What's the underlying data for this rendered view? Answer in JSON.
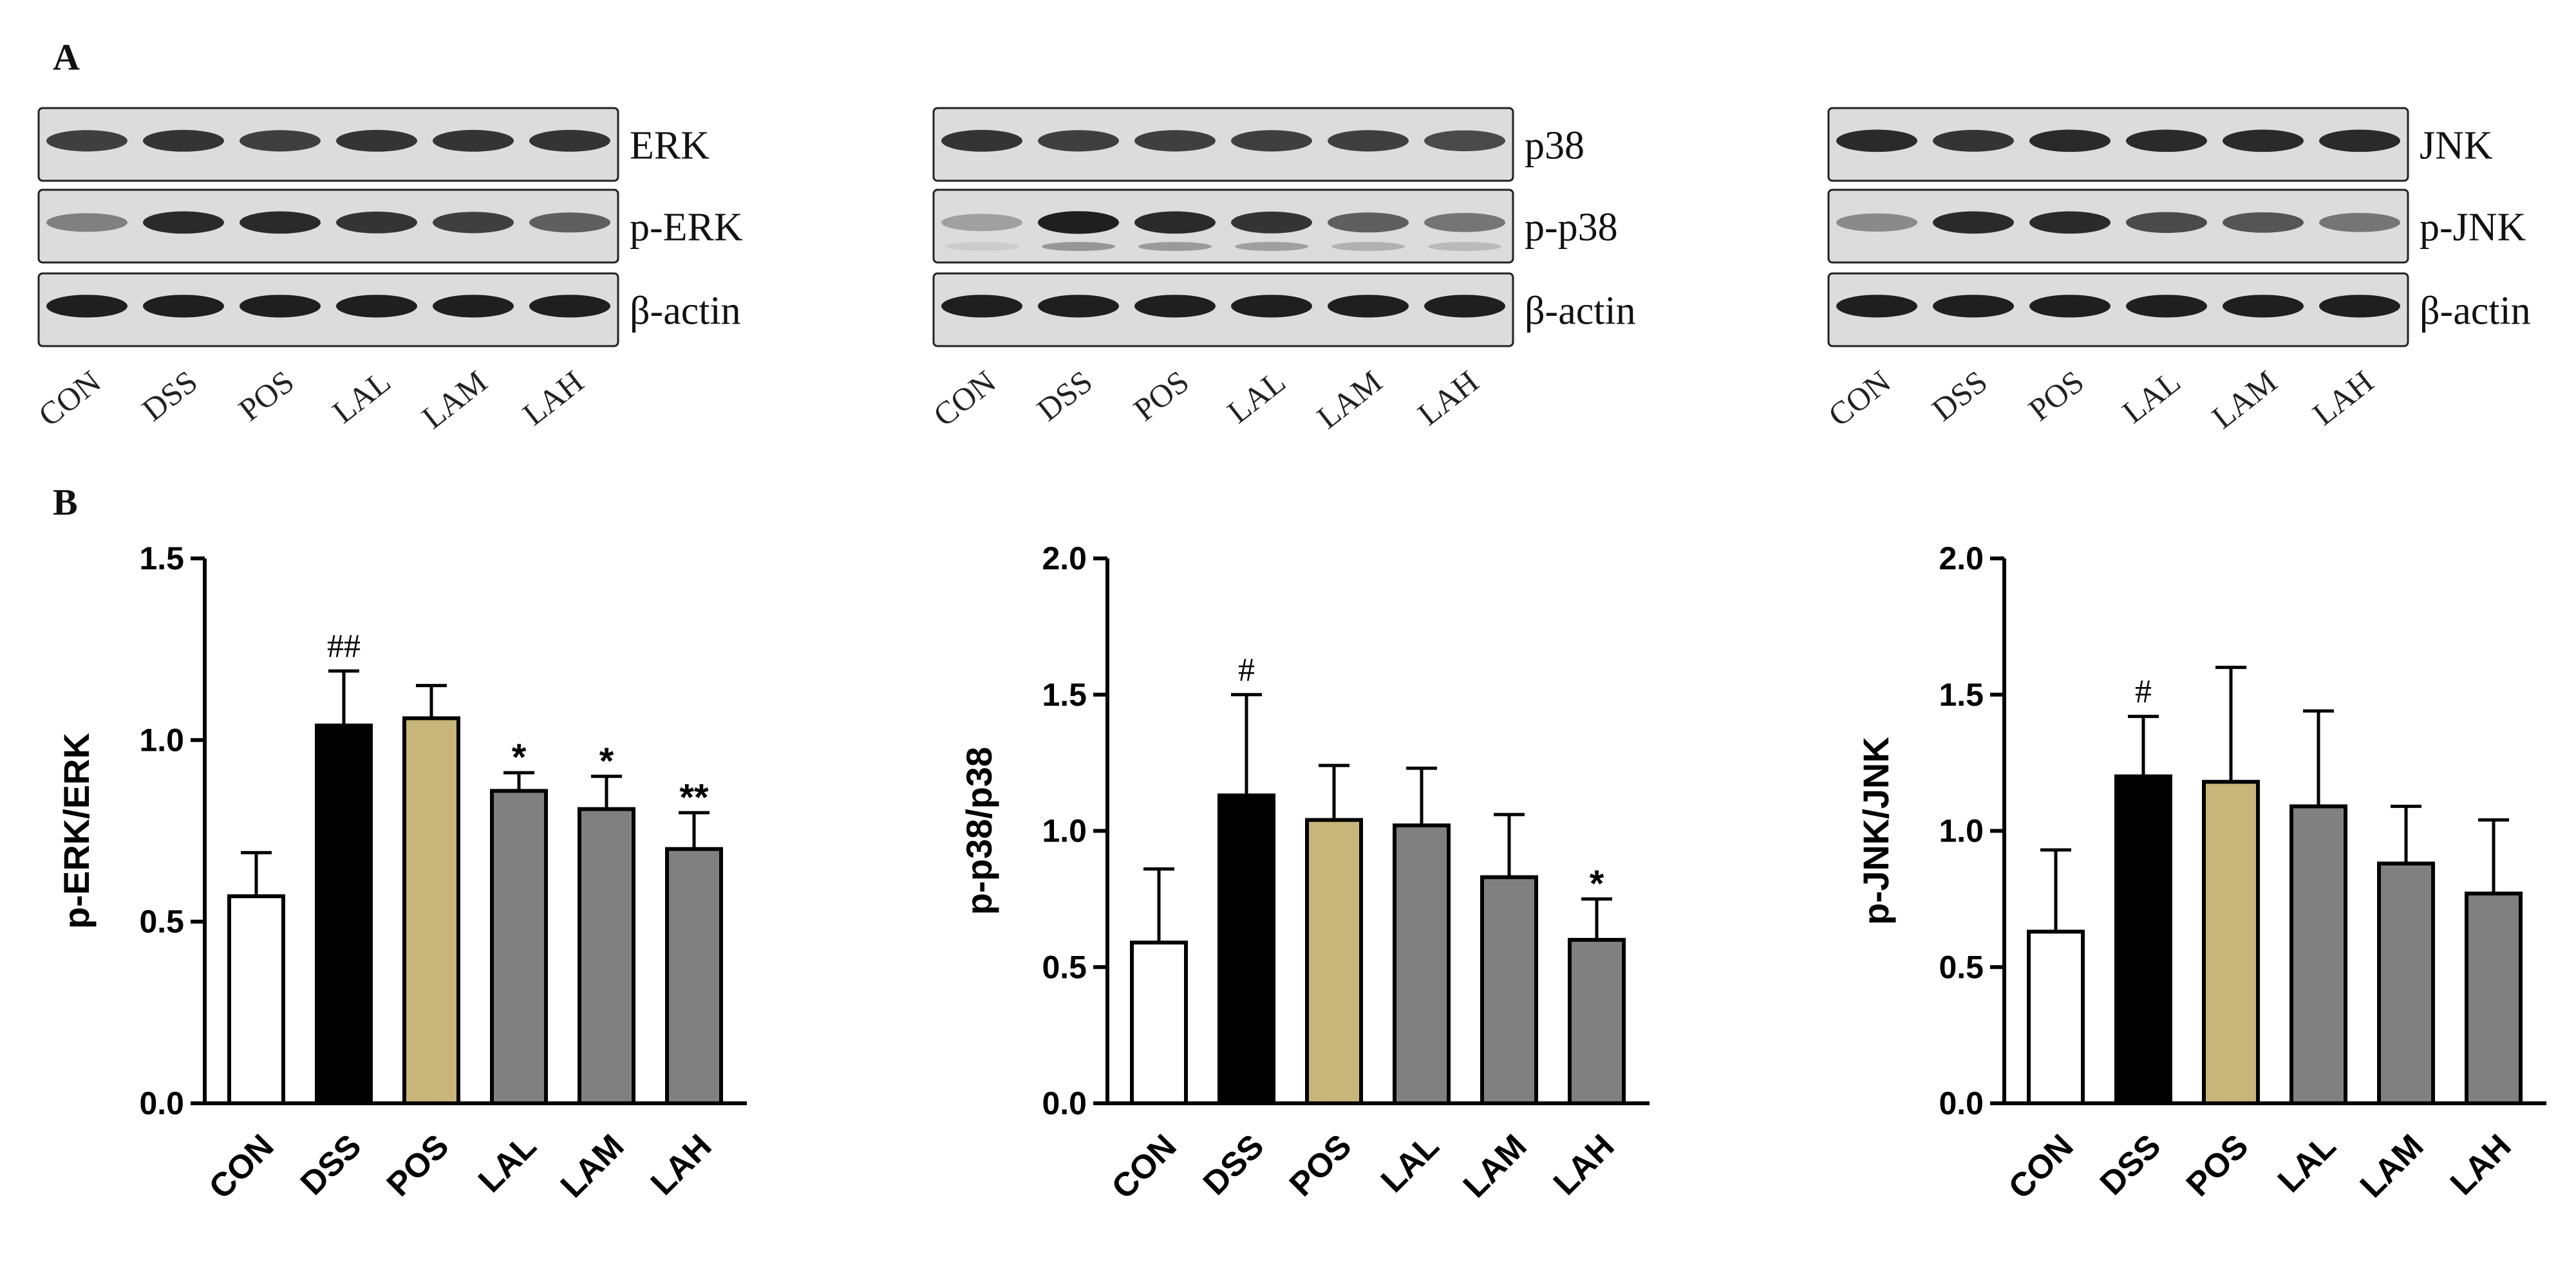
{
  "panel_labels": {
    "a": "A",
    "b": "B"
  },
  "lanes": [
    "CON",
    "DSS",
    "POS",
    "LAL",
    "LAM",
    "LAH"
  ],
  "blots": [
    {
      "rows": [
        {
          "label": "ERK",
          "intensity": [
            0.8,
            0.85,
            0.8,
            0.85,
            0.85,
            0.85
          ],
          "lower_band": false
        },
        {
          "label": "p-ERK",
          "intensity": [
            0.5,
            0.9,
            0.9,
            0.85,
            0.8,
            0.65
          ],
          "lower_band": false
        },
        {
          "label": "β-actin",
          "intensity": [
            0.95,
            0.95,
            0.95,
            0.95,
            0.95,
            0.95
          ],
          "lower_band": false
        }
      ]
    },
    {
      "rows": [
        {
          "label": "p38",
          "intensity": [
            0.85,
            0.8,
            0.8,
            0.8,
            0.8,
            0.75
          ],
          "lower_band": false
        },
        {
          "label": "p-p38",
          "intensity": [
            0.35,
            0.95,
            0.9,
            0.85,
            0.65,
            0.55
          ],
          "lower_band": true
        },
        {
          "label": "β-actin",
          "intensity": [
            0.95,
            0.95,
            0.95,
            0.95,
            0.95,
            0.95
          ],
          "lower_band": false
        }
      ]
    },
    {
      "rows": [
        {
          "label": "JNK",
          "intensity": [
            0.9,
            0.85,
            0.9,
            0.9,
            0.9,
            0.9
          ],
          "lower_band": false
        },
        {
          "label": "p-JNK",
          "intensity": [
            0.45,
            0.9,
            0.9,
            0.75,
            0.7,
            0.55
          ],
          "lower_band": false
        },
        {
          "label": "β-actin",
          "intensity": [
            0.95,
            0.95,
            0.95,
            0.95,
            0.95,
            0.95
          ],
          "lower_band": false
        }
      ]
    }
  ],
  "chart_data": [
    {
      "type": "bar",
      "categories": [
        "CON",
        "DSS",
        "POS",
        "LAL",
        "LAM",
        "LAH"
      ],
      "values": [
        0.57,
        1.04,
        1.06,
        0.86,
        0.81,
        0.7
      ],
      "errors": [
        0.12,
        0.15,
        0.09,
        0.05,
        0.09,
        0.1
      ],
      "significance": [
        "",
        "##",
        "",
        "*",
        "*",
        "**"
      ],
      "ylabel": "p-ERK/ERK",
      "ylim": [
        0,
        1.5
      ],
      "yticks": [
        "0.0",
        "0.5",
        "1.0",
        "1.5"
      ],
      "colors": [
        "#ffffff",
        "#000000",
        "#c8b57a",
        "#808080",
        "#808080",
        "#808080"
      ]
    },
    {
      "type": "bar",
      "categories": [
        "CON",
        "DSS",
        "POS",
        "LAL",
        "LAM",
        "LAH"
      ],
      "values": [
        0.59,
        1.13,
        1.04,
        1.02,
        0.83,
        0.6
      ],
      "errors": [
        0.27,
        0.37,
        0.2,
        0.21,
        0.23,
        0.15
      ],
      "significance": [
        "",
        "#",
        "",
        "",
        "",
        "*"
      ],
      "ylabel": "p-p38/p38",
      "ylim": [
        0,
        2.0
      ],
      "yticks": [
        "0.0",
        "0.5",
        "1.0",
        "1.5",
        "2.0"
      ],
      "colors": [
        "#ffffff",
        "#000000",
        "#c8b57a",
        "#808080",
        "#808080",
        "#808080"
      ]
    },
    {
      "type": "bar",
      "categories": [
        "CON",
        "DSS",
        "POS",
        "LAL",
        "LAM",
        "LAH"
      ],
      "values": [
        0.63,
        1.2,
        1.18,
        1.09,
        0.88,
        0.77
      ],
      "errors": [
        0.3,
        0.22,
        0.42,
        0.35,
        0.21,
        0.27
      ],
      "significance": [
        "",
        "#",
        "",
        "",
        "",
        ""
      ],
      "ylabel": "p-JNK/JNK",
      "ylim": [
        0,
        2.0
      ],
      "yticks": [
        "0.0",
        "0.5",
        "1.0",
        "1.5",
        "2.0"
      ],
      "colors": [
        "#ffffff",
        "#000000",
        "#c8b57a",
        "#808080",
        "#808080",
        "#808080"
      ]
    }
  ]
}
